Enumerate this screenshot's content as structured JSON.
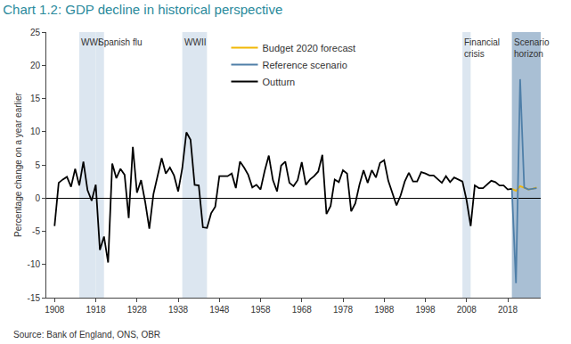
{
  "chart_data": {
    "type": "line",
    "title": "Chart 1.2: GDP decline in historical perspective",
    "y_label": "Percentage change on a year earlier",
    "source": "Source: Bank of England, ONS, OBR",
    "xlim": [
      1906,
      2026
    ],
    "xticks": [
      1908,
      1918,
      1928,
      1938,
      1948,
      1958,
      1968,
      1978,
      1988,
      1998,
      2008,
      2018
    ],
    "ylim": [
      -15,
      25
    ],
    "yticks": [
      -15,
      -10,
      -5,
      0,
      5,
      10,
      15,
      20,
      25
    ],
    "grid": false,
    "legend": "top",
    "shaded_regions": [
      {
        "label": "WWI",
        "x0": 1914,
        "x1": 1918,
        "color": "#dce6f0"
      },
      {
        "label": "Spanish flu",
        "x0": 1918,
        "x1": 1920,
        "color": "#dce6f0"
      },
      {
        "label": "WWII",
        "x0": 1939,
        "x1": 1945,
        "color": "#dce6f0"
      },
      {
        "label": "Financial crisis",
        "x0": 2007,
        "x1": 2009,
        "color": "#dce6f0"
      },
      {
        "label": "Scenario horizon",
        "x0": 2019,
        "x1": 2026,
        "color": "#a9bfd4"
      }
    ],
    "series": [
      {
        "name": "Budget 2020 forecast",
        "color": "#f2b705",
        "x": [
          2019,
          2020,
          2021,
          2022,
          2023,
          2024,
          2025
        ],
        "values": [
          1.4,
          1.1,
          1.8,
          1.5,
          1.3,
          1.4,
          1.6
        ]
      },
      {
        "name": "Reference scenario",
        "color": "#4f7fa8",
        "x": [
          2019,
          2020,
          2021,
          2022,
          2023,
          2024,
          2025
        ],
        "values": [
          1.4,
          -12.8,
          17.9,
          1.6,
          1.3,
          1.4,
          1.5
        ]
      },
      {
        "name": "Outturn",
        "color": "#000000",
        "x": [
          1908,
          1909,
          1910,
          1911,
          1912,
          1913,
          1914,
          1915,
          1916,
          1917,
          1918,
          1919,
          1920,
          1921,
          1922,
          1923,
          1924,
          1925,
          1926,
          1927,
          1928,
          1929,
          1930,
          1931,
          1932,
          1933,
          1934,
          1935,
          1936,
          1937,
          1938,
          1939,
          1940,
          1941,
          1942,
          1943,
          1944,
          1945,
          1946,
          1947,
          1948,
          1949,
          1950,
          1951,
          1952,
          1953,
          1954,
          1955,
          1956,
          1957,
          1958,
          1959,
          1960,
          1961,
          1962,
          1963,
          1964,
          1965,
          1966,
          1967,
          1968,
          1969,
          1970,
          1971,
          1972,
          1973,
          1974,
          1975,
          1976,
          1977,
          1978,
          1979,
          1980,
          1981,
          1982,
          1983,
          1984,
          1985,
          1986,
          1987,
          1988,
          1989,
          1990,
          1991,
          1992,
          1993,
          1994,
          1995,
          1996,
          1997,
          1998,
          1999,
          2000,
          2001,
          2002,
          2003,
          2004,
          2005,
          2006,
          2007,
          2008,
          2009,
          2010,
          2011,
          2012,
          2013,
          2014,
          2015,
          2016,
          2017,
          2018,
          2019
        ],
        "values": [
          -4.2,
          2.3,
          2.8,
          3.2,
          1.7,
          4.4,
          1.9,
          5.5,
          1.2,
          -0.4,
          2.0,
          -7.8,
          -5.8,
          -9.7,
          5.2,
          3.0,
          4.4,
          3.5,
          -3.0,
          7.7,
          0.8,
          2.7,
          -0.6,
          -4.6,
          0.6,
          3.2,
          6.0,
          3.7,
          4.6,
          3.4,
          1.0,
          4.5,
          9.9,
          8.8,
          2.0,
          1.9,
          -4.4,
          -4.5,
          -2.3,
          -1.3,
          3.3,
          3.3,
          3.3,
          3.7,
          1.5,
          5.5,
          4.6,
          3.5,
          1.6,
          2.0,
          1.3,
          4.1,
          6.4,
          2.7,
          1.0,
          4.9,
          5.5,
          2.3,
          1.8,
          2.7,
          5.4,
          2.0,
          2.8,
          3.3,
          4.0,
          6.5,
          -2.4,
          -1.2,
          2.8,
          2.4,
          4.2,
          3.7,
          -2.0,
          -0.8,
          2.0,
          4.2,
          2.3,
          4.2,
          3.1,
          5.3,
          5.7,
          2.6,
          0.7,
          -1.1,
          0.4,
          2.5,
          3.8,
          2.5,
          2.5,
          3.9,
          3.7,
          3.4,
          3.4,
          2.9,
          2.3,
          3.3,
          2.4,
          3.1,
          2.8,
          2.5,
          -0.3,
          -4.2,
          1.9,
          1.5,
          1.5,
          2.1,
          2.6,
          2.4,
          1.9,
          1.9,
          1.3,
          1.4
        ]
      }
    ]
  }
}
